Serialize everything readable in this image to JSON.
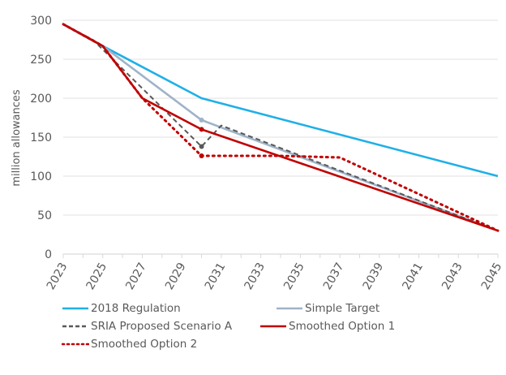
{
  "chart_data": {
    "type": "line",
    "title": "",
    "xlabel": "",
    "ylabel": "million allowances",
    "ylim": [
      0,
      300
    ],
    "xlim": [
      2023,
      2045
    ],
    "yticks": [
      0,
      50,
      100,
      150,
      200,
      250,
      300
    ],
    "xticks": [
      "2023",
      "2025",
      "2027",
      "2029",
      "2031",
      "2033",
      "2035",
      "2037",
      "2039",
      "2041",
      "2043",
      "2045"
    ],
    "grid": "horizontal",
    "legend_position": "bottom",
    "series": [
      {
        "name": "2018 Regulation",
        "color": "#1fb0e6",
        "style": "solid",
        "points": [
          [
            2023,
            295
          ],
          [
            2025,
            267
          ],
          [
            2030,
            200
          ],
          [
            2045,
            100
          ]
        ]
      },
      {
        "name": "Simple Target",
        "color": "#9fb3c8",
        "style": "solid",
        "markers_at": [
          2030
        ],
        "points": [
          [
            2023,
            295
          ],
          [
            2025,
            267
          ],
          [
            2030,
            172
          ],
          [
            2045,
            30
          ]
        ]
      },
      {
        "name": "SRIA Proposed Scenario A",
        "color": "#595959",
        "style": "dashed",
        "markers_at": [
          2030
        ],
        "points": [
          [
            2023,
            295
          ],
          [
            2024.5,
            275
          ],
          [
            2030,
            138
          ],
          [
            2031,
            165
          ],
          [
            2045,
            30
          ]
        ]
      },
      {
        "name": "Smoothed Option 1",
        "color": "#c00000",
        "style": "solid",
        "markers_at": [
          2030
        ],
        "points": [
          [
            2023,
            295
          ],
          [
            2025,
            267
          ],
          [
            2027,
            200
          ],
          [
            2030,
            160
          ],
          [
            2045,
            30
          ]
        ]
      },
      {
        "name": "Smoothed Option 2",
        "color": "#c00000",
        "style": "dotted",
        "markers_at": [
          2030
        ],
        "points": [
          [
            2023,
            295
          ],
          [
            2025,
            267
          ],
          [
            2027,
            200
          ],
          [
            2030,
            126
          ],
          [
            2034,
            126
          ],
          [
            2037,
            124
          ],
          [
            2045,
            30
          ]
        ]
      }
    ]
  }
}
